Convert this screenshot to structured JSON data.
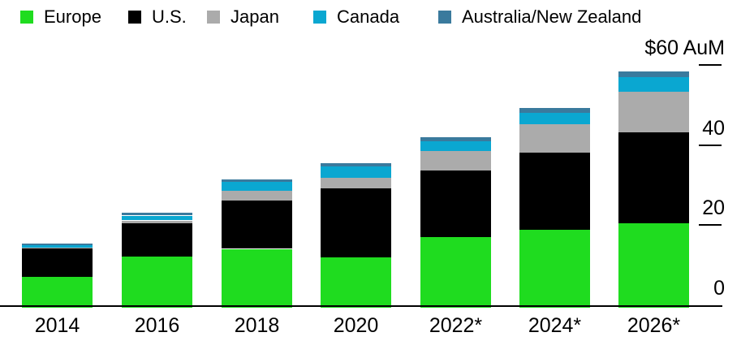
{
  "chart_data": {
    "type": "bar",
    "stacked": true,
    "title": "",
    "categories": [
      "2014",
      "2016",
      "2018",
      "2020",
      "2022*",
      "2024*",
      "2026*"
    ],
    "series": [
      {
        "name": "Europe",
        "color": "#1fdc1f",
        "values": [
          7.2,
          12.2,
          14.1,
          12.0,
          17.1,
          18.8,
          20.5
        ]
      },
      {
        "name": "U.S.",
        "color": "#000000",
        "values": [
          7.0,
          8.3,
          12.1,
          17.2,
          16.6,
          19.3,
          22.7
        ]
      },
      {
        "name": "Japan",
        "color": "#ababab",
        "values": [
          0.3,
          0.7,
          2.4,
          2.7,
          4.9,
          7.1,
          10.1
        ]
      },
      {
        "name": "Canada",
        "color": "#0aa7d1",
        "values": [
          0.5,
          1.2,
          2.2,
          2.7,
          2.4,
          2.8,
          3.7
        ]
      },
      {
        "name": "Australia/New Zealand",
        "color": "#3a7a9d",
        "values": [
          0.5,
          0.8,
          0.7,
          1.0,
          1.0,
          1.2,
          1.4
        ]
      }
    ],
    "y_axis": {
      "unit_label": "$60 AuM",
      "max": 60,
      "ticks": [
        {
          "label": "$60 AuM",
          "value": 60
        },
        {
          "label": "40",
          "value": 40
        },
        {
          "label": "20",
          "value": 20
        },
        {
          "label": "0",
          "value": 0
        }
      ]
    },
    "legend_position": "top",
    "grid": false
  }
}
